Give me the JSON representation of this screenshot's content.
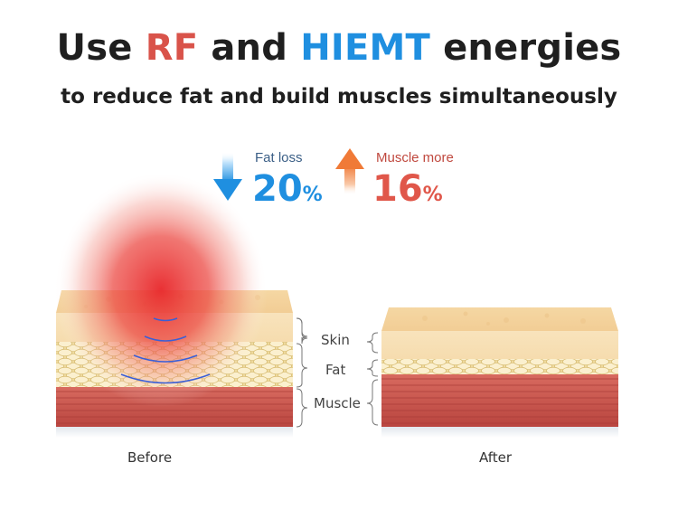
{
  "title": {
    "prefix": "Use ",
    "rf": "RF",
    "middle": " and ",
    "hiemt": "HIEMT",
    "suffix": " energies"
  },
  "subtitle": "to reduce fat and build muscles simultaneously",
  "stats": {
    "fat": {
      "label": "Fat loss",
      "value": "20",
      "unit": "%",
      "arrow": "down-arrow",
      "color": "#1f8fe0"
    },
    "muscle": {
      "label": "Muscle more",
      "value": "16",
      "unit": "%",
      "arrow": "up-arrow",
      "color": "#e0574a"
    }
  },
  "layers": {
    "skin": "Skin",
    "fat": "Fat",
    "muscle": "Muscle"
  },
  "captions": {
    "before": "Before",
    "after": "After"
  },
  "colors": {
    "skin": "#f7dfb3",
    "fat": "#f1dc9a",
    "muscle": "#c7524d",
    "rf_glow": "#e8262a",
    "wave": "#3a5fd6"
  }
}
